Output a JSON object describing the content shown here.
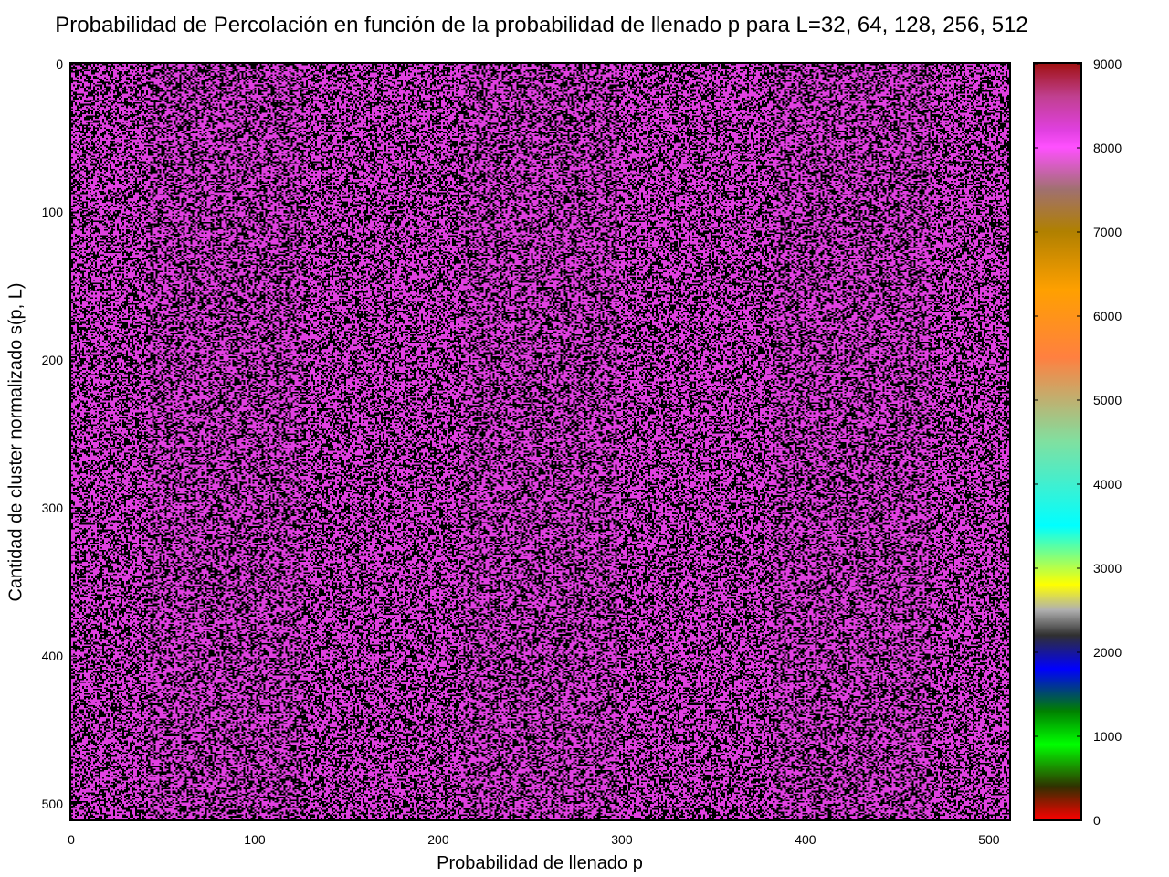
{
  "chart_data": {
    "type": "heatmap",
    "title": "Probabilidad de Percolación en función de la probabilidad de llenado p para L=32, 64, 128, 256, 512",
    "xlabel": "Probabilidad de llenado p",
    "ylabel": "Cantidad de cluster normalizado s(p, L)",
    "xlim": [
      0,
      511
    ],
    "ylim": [
      0,
      511
    ],
    "y_inverted": true,
    "x_ticks": [
      0,
      100,
      200,
      300,
      400,
      500
    ],
    "y_ticks": [
      0,
      100,
      200,
      300,
      400,
      500
    ],
    "grid_shape": [
      512,
      512
    ],
    "value_levels": [
      0,
      8200
    ],
    "fraction_high": 0.55,
    "colorbar": {
      "range": [
        0,
        9000
      ],
      "ticks": [
        0,
        1000,
        2000,
        3000,
        4000,
        5000,
        6000,
        7000,
        8000,
        9000
      ],
      "colormap": [
        {
          "v": 0,
          "color": "#ff0000"
        },
        {
          "v": 400,
          "color": "#303000"
        },
        {
          "v": 900,
          "color": "#00ff00"
        },
        {
          "v": 1300,
          "color": "#008000"
        },
        {
          "v": 1800,
          "color": "#0000ff"
        },
        {
          "v": 2200,
          "color": "#303030"
        },
        {
          "v": 2500,
          "color": "#b0b0b0"
        },
        {
          "v": 2800,
          "color": "#ffff00"
        },
        {
          "v": 3500,
          "color": "#00ffff"
        },
        {
          "v": 4500,
          "color": "#80e0a0"
        },
        {
          "v": 5500,
          "color": "#ff8040"
        },
        {
          "v": 6300,
          "color": "#ffa000"
        },
        {
          "v": 7000,
          "color": "#b08000"
        },
        {
          "v": 7500,
          "color": "#a07070"
        },
        {
          "v": 8000,
          "color": "#ff50ff"
        },
        {
          "v": 8200,
          "color": "#e040e0"
        },
        {
          "v": 8600,
          "color": "#c04090"
        },
        {
          "v": 9000,
          "color": "#a01010"
        }
      ]
    }
  }
}
